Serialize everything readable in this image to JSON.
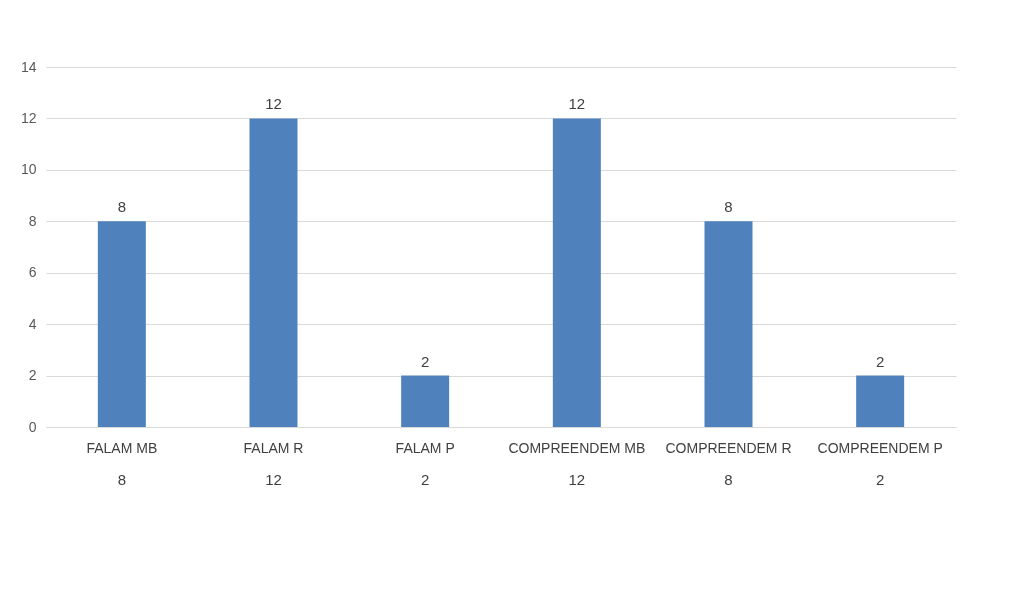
{
  "chart_data": {
    "type": "bar",
    "categories": [
      "FALAM MB",
      "FALAM R",
      "FALAM P",
      "COMPREENDEM MB",
      "COMPREENDEM R",
      "COMPREENDEM P"
    ],
    "series": [
      {
        "color": "#4f81bd",
        "values": [
          8,
          12,
          2,
          12,
          8,
          2
        ]
      }
    ],
    "ylim": [
      0,
      14
    ],
    "yticks": [
      0,
      2,
      4,
      6,
      8,
      10,
      12,
      14
    ],
    "grid": "y",
    "data_labels": true,
    "annotations": [
      "8",
      "12",
      "2",
      "12",
      "8",
      "2"
    ]
  }
}
